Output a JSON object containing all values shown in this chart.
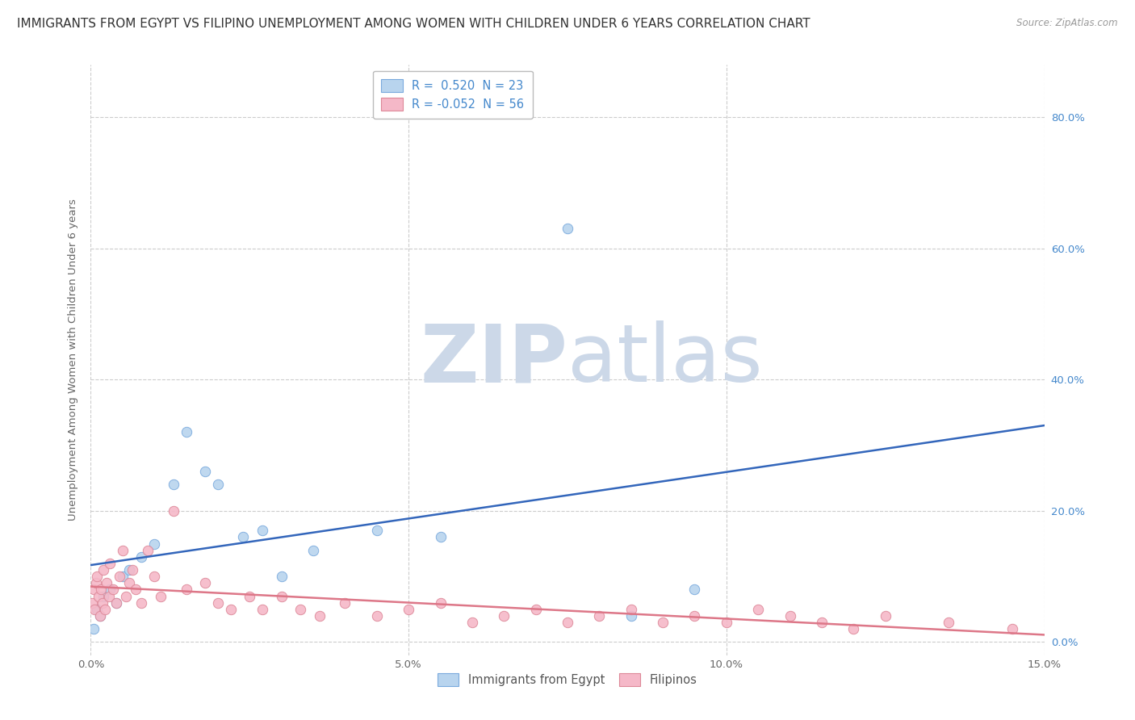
{
  "title": "IMMIGRANTS FROM EGYPT VS FILIPINO UNEMPLOYMENT AMONG WOMEN WITH CHILDREN UNDER 6 YEARS CORRELATION CHART",
  "source": "Source: ZipAtlas.com",
  "ylabel": "Unemployment Among Women with Children Under 6 years",
  "xlim": [
    0.0,
    15.0
  ],
  "ylim": [
    -2.0,
    88.0
  ],
  "xtick_labels": [
    "0.0%",
    "5.0%",
    "10.0%",
    "15.0%"
  ],
  "xtick_values": [
    0.0,
    5.0,
    10.0,
    15.0
  ],
  "ytick_labels": [
    "0.0%",
    "20.0%",
    "40.0%",
    "60.0%",
    "80.0%"
  ],
  "ytick_values": [
    0.0,
    20.0,
    40.0,
    60.0,
    80.0
  ],
  "series": [
    {
      "name": "Immigrants from Egypt",
      "R": 0.52,
      "N": 23,
      "color": "#b8d4ee",
      "edge_color": "#7aaadd",
      "line_color": "#3366bb",
      "x": [
        0.05,
        0.1,
        0.15,
        0.2,
        0.3,
        0.4,
        0.5,
        0.6,
        0.8,
        1.0,
        1.3,
        1.5,
        1.8,
        2.0,
        2.4,
        2.7,
        3.0,
        3.5,
        4.5,
        5.5,
        7.5,
        8.5,
        9.5
      ],
      "y": [
        2.0,
        5.0,
        4.0,
        7.0,
        8.0,
        6.0,
        10.0,
        11.0,
        13.0,
        15.0,
        24.0,
        32.0,
        26.0,
        24.0,
        16.0,
        17.0,
        10.0,
        14.0,
        17.0,
        16.0,
        63.0,
        4.0,
        8.0
      ]
    },
    {
      "name": "Filipinos",
      "R": -0.052,
      "N": 56,
      "color": "#f5b8c8",
      "edge_color": "#dd8898",
      "line_color": "#dd7788",
      "x": [
        0.02,
        0.04,
        0.06,
        0.08,
        0.1,
        0.12,
        0.14,
        0.16,
        0.18,
        0.2,
        0.22,
        0.25,
        0.28,
        0.3,
        0.35,
        0.4,
        0.45,
        0.5,
        0.55,
        0.6,
        0.65,
        0.7,
        0.8,
        0.9,
        1.0,
        1.1,
        1.3,
        1.5,
        1.8,
        2.0,
        2.2,
        2.5,
        2.7,
        3.0,
        3.3,
        3.6,
        4.0,
        4.5,
        5.0,
        5.5,
        6.0,
        6.5,
        7.0,
        7.5,
        8.0,
        8.5,
        9.0,
        9.5,
        10.0,
        10.5,
        11.0,
        11.5,
        12.0,
        12.5,
        13.5,
        14.5
      ],
      "y": [
        6.0,
        8.0,
        5.0,
        9.0,
        10.0,
        7.0,
        4.0,
        8.0,
        6.0,
        11.0,
        5.0,
        9.0,
        7.0,
        12.0,
        8.0,
        6.0,
        10.0,
        14.0,
        7.0,
        9.0,
        11.0,
        8.0,
        6.0,
        14.0,
        10.0,
        7.0,
        20.0,
        8.0,
        9.0,
        6.0,
        5.0,
        7.0,
        5.0,
        7.0,
        5.0,
        4.0,
        6.0,
        4.0,
        5.0,
        6.0,
        3.0,
        4.0,
        5.0,
        3.0,
        4.0,
        5.0,
        3.0,
        4.0,
        3.0,
        5.0,
        4.0,
        3.0,
        2.0,
        4.0,
        3.0,
        2.0
      ]
    }
  ],
  "watermark_zip": "ZIP",
  "watermark_atlas": "atlas",
  "watermark_color": "#ccd8e8",
  "background_color": "#ffffff",
  "grid_color": "#cccccc",
  "title_fontsize": 11,
  "axis_label_fontsize": 9.5,
  "tick_fontsize": 9.5
}
